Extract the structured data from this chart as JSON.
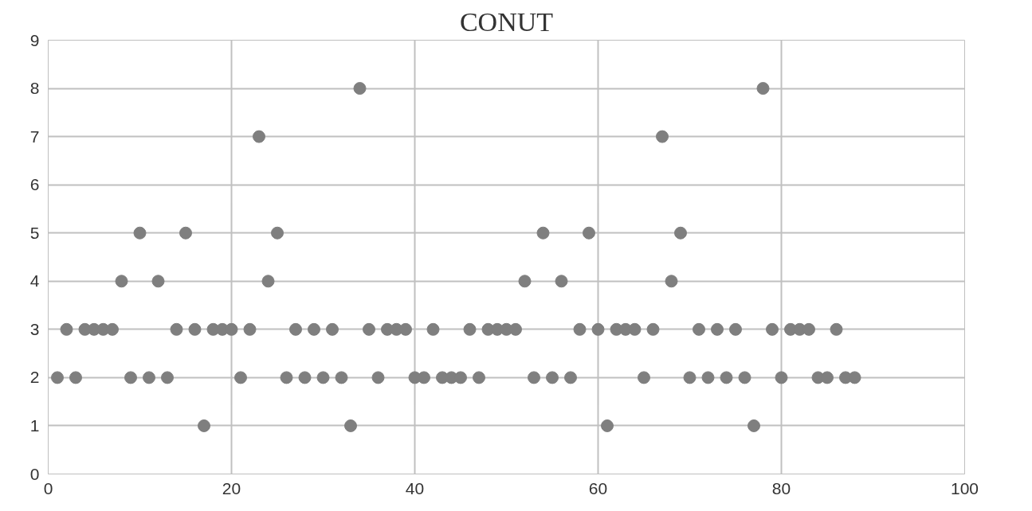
{
  "chart_data": {
    "type": "scatter",
    "title": "CONUT",
    "x": [
      1,
      2,
      3,
      4,
      5,
      6,
      7,
      8,
      9,
      10,
      11,
      12,
      13,
      14,
      15,
      16,
      17,
      18,
      19,
      20,
      21,
      22,
      23,
      24,
      25,
      26,
      27,
      28,
      29,
      30,
      31,
      32,
      33,
      34,
      35,
      36,
      37,
      38,
      39,
      40,
      41,
      42,
      43,
      44,
      45,
      46,
      47,
      48,
      49,
      50,
      51,
      52,
      53,
      54,
      55,
      56,
      57,
      58,
      59,
      60,
      61,
      62,
      63,
      64,
      65,
      66,
      67,
      68,
      69,
      70,
      71,
      72,
      73,
      74,
      75,
      76,
      77,
      78,
      79,
      80,
      81,
      82,
      83,
      84,
      85,
      86,
      87,
      88
    ],
    "values": [
      2,
      3,
      2,
      3,
      3,
      3,
      3,
      4,
      2,
      5,
      2,
      4,
      2,
      3,
      5,
      3,
      1,
      3,
      3,
      3,
      2,
      3,
      7,
      4,
      5,
      2,
      3,
      2,
      3,
      2,
      3,
      2,
      1,
      8,
      3,
      2,
      3,
      3,
      3,
      2,
      2,
      3,
      2,
      2,
      2,
      3,
      2,
      3,
      3,
      3,
      3,
      4,
      2,
      5,
      2,
      4,
      2,
      3,
      5,
      3,
      1,
      3,
      3,
      3,
      2,
      3,
      7,
      4,
      5,
      2,
      3,
      2,
      3,
      2,
      3,
      2,
      1,
      8,
      3,
      2,
      3,
      3,
      3,
      2,
      2,
      3,
      2,
      2
    ],
    "color": "#7f7f7f",
    "marker": "circle",
    "xlim": [
      0,
      100
    ],
    "xticks": [
      0,
      20,
      40,
      60,
      80,
      100
    ],
    "ylim": [
      0,
      9
    ],
    "yticks": [
      0,
      1,
      2,
      3,
      4,
      5,
      6,
      7,
      8,
      9
    ],
    "grid": true
  }
}
